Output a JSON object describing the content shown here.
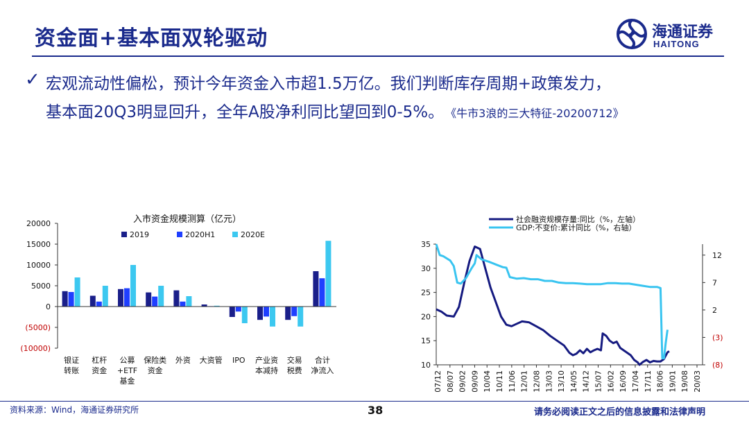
{
  "header": {
    "title": "资金面+基本面双轮驱动",
    "logo_cn": "海通证券",
    "logo_en": "HAITONG"
  },
  "bullets": {
    "check": "✓",
    "line1": "宏观流动性偏松，预计今年资金入市超1.5万亿。我们判断库存周期+政策发力，",
    "line2": "基本面20Q3明显回升，全年A股净利同比望回到0-5%。",
    "ref": "《牛市3浪的三大特征-20200712》"
  },
  "footer": {
    "source": "资料来源：Wind，海通证券研究所",
    "page": "38",
    "disclaimer": "请务必阅读正文之后的信息披露和法律声明"
  },
  "colors": {
    "brand": "#1a2a8c",
    "s2019": "#1a1f8a",
    "s2020h1": "#1f3fff",
    "s2020e": "#3cc8f0",
    "tsf": "#151a80",
    "gdp": "#38c4f0"
  },
  "chart_data": [
    {
      "type": "bar",
      "title": "入市资金规模测算（亿元）",
      "categories": [
        [
          "银证",
          "转账"
        ],
        [
          "杠杆",
          "资金"
        ],
        [
          "公募",
          "+ETF",
          "基金"
        ],
        [
          "保险类",
          "资金"
        ],
        [
          "外资"
        ],
        [
          "大资管"
        ],
        [
          "IPO"
        ],
        [
          "产业资",
          "本减持"
        ],
        [
          "交易",
          "税费"
        ],
        [
          "合计",
          "净流入"
        ]
      ],
      "series": [
        {
          "name": "2019",
          "values": [
            3700,
            2600,
            4200,
            3400,
            3900,
            500,
            -2500,
            -3200,
            -3200,
            8500
          ]
        },
        {
          "name": "2020H1",
          "values": [
            3500,
            1200,
            4400,
            2400,
            1200,
            100,
            -1200,
            -2400,
            -2300,
            6800
          ]
        },
        {
          "name": "2020E",
          "values": [
            7000,
            5000,
            10000,
            5000,
            2500,
            200,
            -4000,
            -4800,
            -4800,
            15800
          ]
        }
      ],
      "ylim": [
        -10000,
        20000
      ],
      "yticks": [
        20000,
        15000,
        10000,
        5000,
        0,
        -5000,
        -10000
      ],
      "ytick_labels": [
        "20000",
        "15000",
        "10000",
        "5000",
        "0",
        "(5000)",
        "(10000)"
      ]
    },
    {
      "type": "line",
      "x_ticks": [
        "07/12",
        "08/07",
        "09/02",
        "09/09",
        "10/04",
        "10/11",
        "11/06",
        "12/01",
        "12/08",
        "13/03",
        "13/10",
        "14/05",
        "14/12",
        "15/07",
        "16/02",
        "16/09",
        "17/04",
        "17/11",
        "18/06",
        "19/01",
        "19/08",
        "20/03"
      ],
      "x_range": [
        0,
        152
      ],
      "left_axis": {
        "ylim": [
          10,
          35
        ],
        "ticks": [
          "35",
          "30",
          "25",
          "20",
          "15",
          "10"
        ],
        "values": [
          35,
          30,
          25,
          20,
          15,
          10
        ]
      },
      "right_axis": {
        "ylim": [
          -8,
          14
        ],
        "ticks": [
          "12",
          "7",
          "2",
          "(3)",
          "(8)"
        ],
        "values": [
          12,
          7,
          2,
          -3,
          -8
        ]
      },
      "series": [
        {
          "name": "社会融资规模存量:同比（%，左轴）",
          "axis": "left",
          "points": [
            [
              0,
              21.5
            ],
            [
              3,
              21
            ],
            [
              6,
              20.2
            ],
            [
              10,
              20
            ],
            [
              13,
              22
            ],
            [
              16,
              27
            ],
            [
              19,
              31.5
            ],
            [
              22,
              34.5
            ],
            [
              25,
              34
            ],
            [
              28,
              30
            ],
            [
              31,
              26
            ],
            [
              34,
              23
            ],
            [
              37,
              20
            ],
            [
              40,
              18.3
            ],
            [
              43,
              18
            ],
            [
              46,
              18.5
            ],
            [
              49,
              19
            ],
            [
              53,
              18.8
            ],
            [
              57,
              18
            ],
            [
              61,
              17.2
            ],
            [
              65,
              16
            ],
            [
              69,
              15
            ],
            [
              73,
              14
            ],
            [
              76,
              12.5
            ],
            [
              78,
              12
            ],
            [
              80,
              12.3
            ],
            [
              82,
              13
            ],
            [
              84,
              12.4
            ],
            [
              86,
              13.3
            ],
            [
              88,
              12.6
            ],
            [
              90,
              13
            ],
            [
              92,
              13.3
            ],
            [
              94,
              13
            ],
            [
              95,
              16.5
            ],
            [
              97,
              16
            ],
            [
              99,
              15
            ],
            [
              101,
              14.5
            ],
            [
              103,
              14.8
            ],
            [
              105,
              13.5
            ],
            [
              107,
              13
            ],
            [
              109,
              12.5
            ],
            [
              111,
              12
            ],
            [
              113,
              11
            ],
            [
              115,
              10.5
            ],
            [
              116,
              10
            ],
            [
              117,
              10.3
            ],
            [
              118,
              10.6
            ],
            [
              120,
              11
            ],
            [
              122,
              10.5
            ],
            [
              124,
              10.8
            ],
            [
              126,
              10.7
            ],
            [
              128,
              10.7
            ],
            [
              130,
              11.2
            ],
            [
              132,
              12.6
            ],
            [
              133,
              12.8
            ]
          ]
        },
        {
          "name": "GDP:不变价:累计同比（%，右轴）",
          "axis": "right",
          "points": [
            [
              0,
              14
            ],
            [
              2,
              12
            ],
            [
              4,
              11.8
            ],
            [
              8,
              11
            ],
            [
              10,
              10
            ],
            [
              12,
              7
            ],
            [
              14,
              6.8
            ],
            [
              17,
              7.8
            ],
            [
              20,
              9.5
            ],
            [
              22,
              10.5
            ],
            [
              23,
              12
            ],
            [
              26,
              11.2
            ],
            [
              30,
              10.8
            ],
            [
              34,
              10.3
            ],
            [
              38,
              9.8
            ],
            [
              40,
              9.7
            ],
            [
              42,
              8
            ],
            [
              46,
              7.7
            ],
            [
              50,
              7.8
            ],
            [
              54,
              7.6
            ],
            [
              58,
              7.6
            ],
            [
              62,
              7.3
            ],
            [
              66,
              7.3
            ],
            [
              70,
              7.0
            ],
            [
              74,
              6.9
            ],
            [
              78,
              6.9
            ],
            [
              82,
              6.8
            ],
            [
              86,
              6.7
            ],
            [
              90,
              6.7
            ],
            [
              94,
              6.7
            ],
            [
              98,
              6.9
            ],
            [
              102,
              6.9
            ],
            [
              106,
              6.8
            ],
            [
              110,
              6.8
            ],
            [
              114,
              6.6
            ],
            [
              118,
              6.4
            ],
            [
              122,
              6.2
            ],
            [
              126,
              6.2
            ],
            [
              128,
              6.0
            ],
            [
              129,
              -6.8
            ],
            [
              130,
              -6.8
            ],
            [
              131,
              -4
            ],
            [
              132,
              -1.6
            ]
          ]
        }
      ]
    }
  ]
}
